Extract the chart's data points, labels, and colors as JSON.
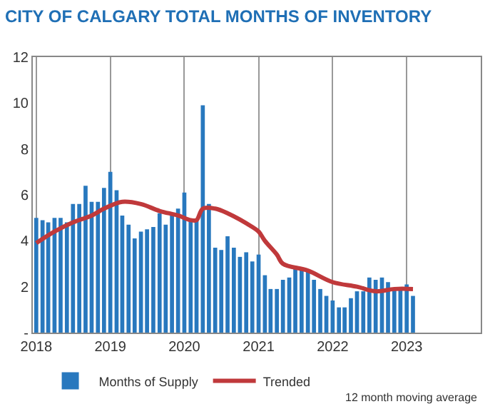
{
  "chart_data": {
    "type": "bar",
    "title": "CITY OF CALGARY TOTAL MONTHS OF INVENTORY",
    "x": [
      "2018-01",
      "2018-02",
      "2018-03",
      "2018-04",
      "2018-05",
      "2018-06",
      "2018-07",
      "2018-08",
      "2018-09",
      "2018-10",
      "2018-11",
      "2018-12",
      "2019-01",
      "2019-02",
      "2019-03",
      "2019-04",
      "2019-05",
      "2019-06",
      "2019-07",
      "2019-08",
      "2019-09",
      "2019-10",
      "2019-11",
      "2019-12",
      "2020-01",
      "2020-02",
      "2020-03",
      "2020-04",
      "2020-05",
      "2020-06",
      "2020-07",
      "2020-08",
      "2020-09",
      "2020-10",
      "2020-11",
      "2020-12",
      "2021-01",
      "2021-02",
      "2021-03",
      "2021-04",
      "2021-05",
      "2021-06",
      "2021-07",
      "2021-08",
      "2021-09",
      "2021-10",
      "2021-11",
      "2021-12",
      "2022-01",
      "2022-02",
      "2022-03",
      "2022-04",
      "2022-05",
      "2022-06",
      "2022-07",
      "2022-08",
      "2022-09",
      "2022-10",
      "2022-11",
      "2022-12",
      "2023-01",
      "2023-02"
    ],
    "series": [
      {
        "name": "Months of Supply",
        "color": "#2878be",
        "values": [
          5.0,
          4.9,
          4.8,
          5.0,
          5.0,
          4.8,
          5.6,
          5.6,
          6.4,
          5.7,
          5.7,
          6.3,
          7.0,
          6.2,
          5.1,
          4.7,
          4.1,
          4.4,
          4.5,
          4.6,
          5.2,
          4.7,
          5.1,
          5.4,
          6.1,
          4.9,
          4.9,
          9.9,
          5.6,
          3.7,
          3.6,
          4.2,
          3.7,
          3.3,
          3.5,
          3.1,
          3.4,
          2.5,
          1.9,
          1.9,
          2.3,
          2.4,
          2.9,
          2.8,
          2.7,
          2.3,
          1.9,
          1.6,
          1.4,
          1.1,
          1.1,
          1.5,
          1.8,
          1.8,
          2.4,
          2.3,
          2.4,
          2.2,
          1.9,
          1.9,
          2.1,
          1.6
        ]
      },
      {
        "name": "Trended",
        "type": "line",
        "color": "#c0393b",
        "x": [
          "2018-01",
          "2018-04",
          "2018-07",
          "2018-10",
          "2018-12",
          "2019-03",
          "2019-06",
          "2019-09",
          "2019-12",
          "2020-02",
          "2020-03",
          "2020-04",
          "2020-06",
          "2020-08",
          "2020-12",
          "2021-01",
          "2021-02",
          "2021-04",
          "2021-05",
          "2021-09",
          "2022-01",
          "2022-05",
          "2022-08",
          "2022-11",
          "2023-02"
        ],
        "values": [
          3.9,
          4.4,
          4.8,
          5.1,
          5.4,
          5.7,
          5.6,
          5.3,
          5.1,
          4.9,
          4.9,
          5.4,
          5.4,
          5.2,
          4.6,
          4.4,
          4.0,
          3.4,
          3.0,
          2.7,
          2.2,
          2.0,
          1.8,
          1.9,
          1.9
        ]
      }
    ],
    "xlim": [
      "2017-12-15",
      "2024-01-01"
    ],
    "xticks": [
      {
        "value": "2018-01-01",
        "label": "2018"
      },
      {
        "value": "2019-01-01",
        "label": "2019"
      },
      {
        "value": "2020-01-01",
        "label": "2020"
      },
      {
        "value": "2021-01-01",
        "label": "2021"
      },
      {
        "value": "2022-01-01",
        "label": "2022"
      },
      {
        "value": "2023-01-01",
        "label": "2023"
      }
    ],
    "ylim": [
      0,
      12
    ],
    "yticks": [
      {
        "value": 0,
        "label": "-"
      },
      2,
      4,
      6,
      8,
      10,
      12
    ],
    "grid": "x",
    "legend": "bottom",
    "annotations": [
      "12 month moving average"
    ]
  }
}
